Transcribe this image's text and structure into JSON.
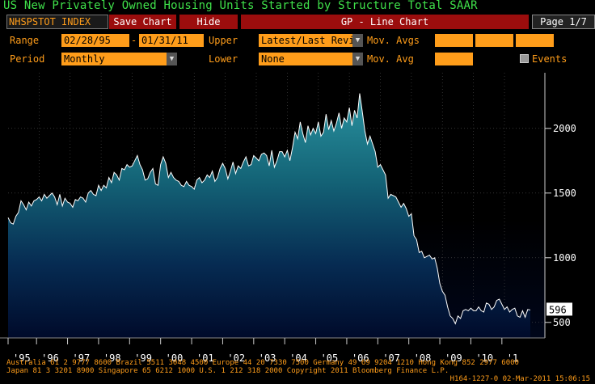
{
  "title": "US New Privately Owned Housing Units Started by Structure Total SAAR",
  "toolbar": {
    "ticker": "NHSPSTOT INDEX",
    "save": "Save Chart",
    "hide": "Hide",
    "function": "GP - Line Chart",
    "page": "Page 1/7"
  },
  "controls": {
    "range_label": "Range",
    "range_start": "02/28/95",
    "range_sep": "-",
    "range_end": "01/31/11",
    "upper_label": "Upper",
    "upper_value": "Latest/Last Revi",
    "movavgs_label": "Mov. Avgs",
    "period_label": "Period",
    "period_value": "Monthly",
    "lower_label": "Lower",
    "lower_value": "None",
    "movavg_label": "Mov. Avg",
    "events_label": "Events"
  },
  "colors": {
    "accent_orange": "#ff9d1a",
    "title_green": "#3fe04a",
    "button_red": "#9b0d0d",
    "area_top": "#1d7f8a",
    "area_bottom": "#000a2a",
    "line": "#ffffff"
  },
  "chart_data": {
    "type": "area",
    "series": [
      {
        "values": [
          1310,
          1270,
          1260,
          1320,
          1350,
          1440,
          1410,
          1370,
          1430,
          1400,
          1440,
          1450,
          1470,
          1440,
          1490,
          1460,
          1480,
          1500,
          1470,
          1410,
          1490,
          1400,
          1460,
          1430,
          1420,
          1390,
          1450,
          1440,
          1470,
          1460,
          1430,
          1500,
          1520,
          1490,
          1480,
          1560,
          1520,
          1560,
          1540,
          1620,
          1580,
          1660,
          1640,
          1600,
          1690,
          1680,
          1720,
          1700,
          1710,
          1750,
          1790,
          1720,
          1680,
          1600,
          1610,
          1660,
          1690,
          1570,
          1560,
          1720,
          1780,
          1730,
          1620,
          1660,
          1620,
          1600,
          1590,
          1560,
          1550,
          1590,
          1560,
          1550,
          1530,
          1600,
          1620,
          1580,
          1600,
          1640,
          1620,
          1670,
          1590,
          1620,
          1690,
          1730,
          1690,
          1610,
          1670,
          1740,
          1650,
          1710,
          1690,
          1740,
          1780,
          1710,
          1720,
          1790,
          1770,
          1750,
          1800,
          1810,
          1790,
          1710,
          1830,
          1700,
          1750,
          1820,
          1820,
          1780,
          1830,
          1750,
          1850,
          1970,
          1920,
          2050,
          1960,
          1890,
          2020,
          1950,
          2000,
          1960,
          2050,
          1940,
          1970,
          2110,
          1990,
          2060,
          1980,
          2040,
          2120,
          2000,
          2080,
          2050,
          2160,
          2020,
          2140,
          2080,
          2270,
          2130,
          1980,
          1880,
          1940,
          1880,
          1820,
          1700,
          1720,
          1680,
          1640,
          1460,
          1490,
          1480,
          1470,
          1430,
          1390,
          1420,
          1380,
          1320,
          1340,
          1170,
          1140,
          1040,
          1050,
          1000,
          1010,
          1020,
          990,
          1000,
          920,
          800,
          740,
          710,
          620,
          550,
          530,
          490,
          550,
          530,
          590,
          600,
          590,
          610,
          590,
          590,
          620,
          590,
          580,
          650,
          640,
          600,
          620,
          670,
          680,
          640,
          600,
          620,
          580,
          600,
          610,
          550,
          540,
          590,
          540,
          600,
          596
        ],
        "start": "1995-02",
        "frequency": "monthly"
      }
    ],
    "x_tick_labels": [
      "'95",
      "'96",
      "'97",
      "'98",
      "'99",
      "'00",
      "'01",
      "'02",
      "'03",
      "'04",
      "'05",
      "'06",
      "'07",
      "'08",
      "'09",
      "'10",
      "'1"
    ],
    "y_ticks": [
      500,
      1000,
      1500,
      2000
    ],
    "y_range": [
      380,
      2430
    ],
    "last_value_label": "596",
    "grid": "dotted-horizontal-and-vertical"
  },
  "footer": {
    "line1": "Australia 61 2 9777 8600 Brazil 5511 3048 4500 Europe 44 20 7330 7500 Germany 49 69 9204 1210 Hong Kong 852 2977 6000",
    "line2": "Japan 81 3 3201 8900         Singapore 65 6212 1000         U.S. 1 212 318 2000         Copyright 2011 Bloomberg Finance L.P.",
    "line3": "H164-1227-0 02-Mar-2011 15:06:15"
  }
}
